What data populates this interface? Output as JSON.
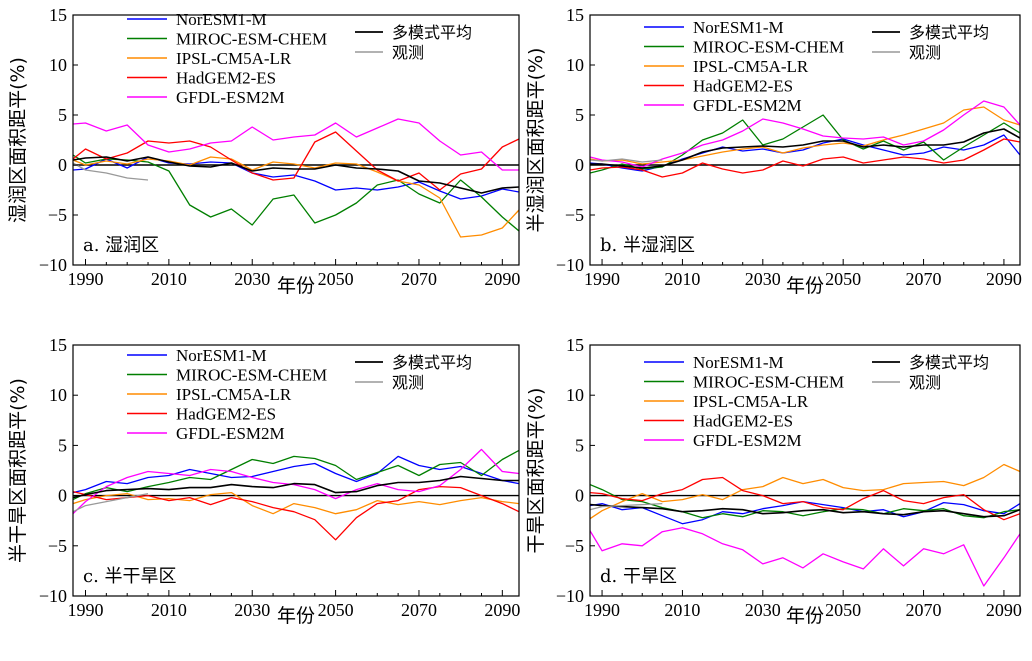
{
  "chart_data": [
    {
      "type": "line",
      "panel_label": "a. 湿润区",
      "xlabel": "年份",
      "ylabel": "湿润区面积距平(%)",
      "xlim": [
        1987,
        2094
      ],
      "ylim": [
        -10,
        15
      ],
      "xticks": [
        "1990",
        "2010",
        "2030",
        "2050",
        "2070",
        "2090"
      ],
      "yticks": [
        "15",
        "10",
        "5",
        "0",
        "−5",
        "−10"
      ],
      "x": [
        1987,
        1990,
        1995,
        2000,
        2005,
        2010,
        2015,
        2020,
        2025,
        2030,
        2035,
        2040,
        2045,
        2050,
        2055,
        2060,
        2065,
        2070,
        2075,
        2080,
        2085,
        2090,
        2094
      ],
      "series": [
        {
          "name": "NorESM1-M",
          "values": [
            -0.5,
            -0.4,
            0.6,
            -0.3,
            0.8,
            0.2,
            0.1,
            0.3,
            0.2,
            -0.8,
            -1.2,
            -1.0,
            -1.6,
            -2.5,
            -2.3,
            -2.5,
            -2.2,
            -1.7,
            -2.6,
            -3.4,
            -3.1,
            -2.4,
            -2.7
          ]
        },
        {
          "name": "MIROC-ESM-CHEM",
          "values": [
            1.0,
            0.2,
            0.6,
            0.5,
            0.3,
            -0.6,
            -4.0,
            -5.2,
            -4.4,
            -6.0,
            -3.4,
            -3.0,
            -5.8,
            -5.0,
            -3.8,
            -2.0,
            -1.5,
            -2.9,
            -3.8,
            -1.5,
            -3.2,
            -5.2,
            -6.6
          ]
        },
        {
          "name": "IPSL-CM5A-LR",
          "values": [
            0.5,
            0.0,
            0.4,
            0.1,
            0.6,
            0.4,
            0.0,
            0.8,
            0.6,
            -0.5,
            0.3,
            0.1,
            -0.3,
            0.2,
            0.1,
            -0.7,
            -1.6,
            -2.0,
            -3.3,
            -7.2,
            -7.0,
            -6.3,
            -4.5
          ]
        },
        {
          "name": "HadGEM2-ES",
          "values": [
            0.6,
            1.6,
            0.6,
            1.2,
            2.4,
            2.2,
            2.4,
            1.8,
            0.5,
            -0.8,
            -1.5,
            -1.3,
            2.3,
            3.3,
            1.4,
            -0.5,
            -1.6,
            -0.8,
            -2.5,
            -0.9,
            -0.4,
            1.8,
            2.6
          ]
        },
        {
          "name": "GFDL-ESM2M",
          "values": [
            4.1,
            4.2,
            3.4,
            4.0,
            2.0,
            1.3,
            1.6,
            2.2,
            2.4,
            3.8,
            2.5,
            2.8,
            3.0,
            4.2,
            2.8,
            3.7,
            4.6,
            4.2,
            2.4,
            1.0,
            1.3,
            -0.5,
            -0.5
          ]
        },
        {
          "name": "多模式平均",
          "values": [
            0.5,
            0.7,
            0.8,
            0.4,
            0.8,
            0.3,
            -0.1,
            -0.2,
            0.2,
            -0.6,
            -0.3,
            -0.4,
            -0.4,
            0.0,
            -0.3,
            -0.4,
            -0.6,
            -1.6,
            -1.8,
            -2.3,
            -2.8,
            -2.3,
            -2.2
          ]
        },
        {
          "name": "观测",
          "values": [
            0.2,
            -0.5,
            -0.8,
            -1.3,
            -1.5,
            null,
            null,
            null,
            null,
            null,
            null,
            null,
            null,
            null,
            null,
            null,
            null,
            null,
            null,
            null,
            null,
            null,
            null
          ]
        }
      ]
    },
    {
      "type": "line",
      "panel_label": "b. 半湿润区",
      "xlabel": "年份",
      "ylabel": "半湿润区面积距平(%)",
      "xlim": [
        1987,
        2094
      ],
      "ylim": [
        -10,
        15
      ],
      "xticks": [
        "1990",
        "2010",
        "2030",
        "2050",
        "2070",
        "2090"
      ],
      "yticks": [
        "15",
        "10",
        "5",
        "0",
        "−5",
        "−10"
      ],
      "x": [
        1987,
        1990,
        1995,
        2000,
        2005,
        2010,
        2015,
        2020,
        2025,
        2030,
        2035,
        2040,
        2045,
        2050,
        2055,
        2060,
        2065,
        2070,
        2075,
        2080,
        2085,
        2090,
        2094
      ],
      "series": [
        {
          "name": "NorESM1-M",
          "values": [
            0.2,
            0.1,
            -0.3,
            -0.6,
            -0.1,
            0.6,
            1.2,
            1.8,
            1.4,
            1.6,
            1.2,
            1.5,
            2.2,
            2.6,
            2.0,
            1.5,
            1.0,
            1.2,
            1.8,
            1.5,
            2.0,
            3.0,
            1.0
          ]
        },
        {
          "name": "MIROC-ESM-CHEM",
          "values": [
            -0.8,
            -0.5,
            0.1,
            -0.4,
            -0.2,
            1.0,
            2.5,
            3.2,
            4.5,
            2.0,
            2.6,
            3.8,
            5.0,
            2.5,
            1.6,
            2.4,
            1.5,
            2.3,
            0.5,
            1.8,
            3.0,
            4.2,
            3.2
          ]
        },
        {
          "name": "IPSL-CM5A-LR",
          "values": [
            0.6,
            0.4,
            0.5,
            0.1,
            0.3,
            0.5,
            0.9,
            1.3,
            1.6,
            1.8,
            1.2,
            1.7,
            2.0,
            2.2,
            1.9,
            2.5,
            3.0,
            3.6,
            4.2,
            5.5,
            5.8,
            4.5,
            4.0
          ]
        },
        {
          "name": "HadGEM2-ES",
          "values": [
            -0.5,
            -0.3,
            -0.2,
            -0.5,
            -1.2,
            -0.8,
            0.2,
            -0.4,
            -0.8,
            -0.5,
            0.4,
            -0.1,
            0.6,
            0.8,
            0.2,
            0.5,
            0.8,
            0.6,
            0.2,
            0.5,
            1.5,
            2.6,
            2.3
          ]
        },
        {
          "name": "GFDL-ESM2M",
          "values": [
            0.8,
            0.5,
            0.3,
            -0.2,
            0.6,
            1.2,
            2.0,
            2.5,
            3.4,
            4.6,
            4.2,
            3.6,
            2.9,
            2.7,
            2.6,
            2.8,
            2.0,
            2.4,
            3.5,
            5.0,
            6.4,
            5.8,
            4.0
          ]
        },
        {
          "name": "多模式平均",
          "values": [
            0.1,
            0.1,
            -0.1,
            -0.3,
            -0.1,
            0.5,
            1.3,
            1.7,
            1.8,
            1.9,
            1.8,
            2.0,
            2.4,
            2.4,
            1.8,
            2.0,
            1.8,
            2.0,
            2.0,
            2.3,
            3.2,
            3.6,
            2.7
          ]
        },
        {
          "name": "观测",
          "values": [
            0.5,
            0.4,
            0.6,
            0.3,
            0.5,
            null,
            null,
            null,
            null,
            null,
            null,
            null,
            null,
            null,
            null,
            null,
            null,
            null,
            null,
            null,
            null,
            null,
            null
          ]
        }
      ]
    },
    {
      "type": "line",
      "panel_label": "c. 半干旱区",
      "xlabel": "年份",
      "ylabel": "半干旱区面积距平(%)",
      "xlim": [
        1987,
        2094
      ],
      "ylim": [
        -10,
        15
      ],
      "xticks": [
        "1990",
        "2010",
        "2030",
        "2050",
        "2070",
        "2090"
      ],
      "yticks": [
        "15",
        "10",
        "5",
        "0",
        "−5",
        "−10"
      ],
      "x": [
        1987,
        1990,
        1995,
        2000,
        2005,
        2010,
        2015,
        2020,
        2025,
        2030,
        2035,
        2040,
        2045,
        2050,
        2055,
        2060,
        2065,
        2070,
        2075,
        2080,
        2085,
        2090,
        2094
      ],
      "series": [
        {
          "name": "NorESM1-M",
          "values": [
            0.3,
            0.6,
            1.4,
            1.2,
            1.8,
            2.0,
            2.6,
            2.2,
            1.8,
            1.9,
            2.4,
            2.9,
            3.2,
            2.2,
            1.4,
            2.2,
            3.9,
            3.0,
            2.6,
            2.9,
            2.2,
            1.5,
            1.2
          ]
        },
        {
          "name": "MIROC-ESM-CHEM",
          "values": [
            -0.4,
            0.2,
            0.8,
            0.4,
            0.9,
            1.3,
            1.8,
            1.6,
            2.6,
            3.6,
            3.2,
            3.9,
            3.7,
            3.0,
            1.6,
            2.3,
            3.0,
            2.0,
            3.1,
            3.3,
            2.0,
            3.6,
            4.5
          ]
        },
        {
          "name": "IPSL-CM5A-LR",
          "values": [
            -0.8,
            -0.4,
            0.0,
            0.2,
            -0.4,
            -0.3,
            -0.5,
            0.1,
            0.3,
            -1.0,
            -1.8,
            -0.8,
            -1.2,
            -1.8,
            -1.4,
            -0.5,
            -0.9,
            -0.6,
            -0.9,
            -0.5,
            -0.2,
            -0.6,
            -0.8
          ]
        },
        {
          "name": "HadGEM2-ES",
          "values": [
            0.4,
            0.1,
            -0.4,
            -0.2,
            0.0,
            -0.5,
            -0.2,
            -0.9,
            -0.2,
            -0.6,
            -1.2,
            -1.6,
            -2.4,
            -4.4,
            -2.2,
            -0.8,
            -0.5,
            0.6,
            0.9,
            0.8,
            0.0,
            -0.8,
            -1.6
          ]
        },
        {
          "name": "GFDL-ESM2M",
          "values": [
            -1.8,
            -0.6,
            0.9,
            1.8,
            2.4,
            2.2,
            2.0,
            2.6,
            2.4,
            1.8,
            1.3,
            1.1,
            0.6,
            -0.3,
            0.6,
            1.2,
            0.6,
            0.4,
            1.0,
            2.6,
            4.6,
            2.4,
            2.2
          ]
        },
        {
          "name": "多模式平均",
          "values": [
            -0.2,
            0.1,
            0.5,
            0.6,
            0.7,
            0.6,
            0.8,
            0.8,
            1.1,
            0.9,
            0.8,
            1.2,
            1.1,
            0.3,
            0.4,
            1.0,
            1.3,
            1.3,
            1.5,
            1.9,
            1.7,
            1.5,
            1.5
          ]
        },
        {
          "name": "观测",
          "values": [
            -1.6,
            -1.0,
            -0.6,
            -0.2,
            0.2,
            null,
            null,
            null,
            null,
            null,
            null,
            null,
            null,
            null,
            null,
            null,
            null,
            null,
            null,
            null,
            null,
            null,
            null
          ]
        }
      ]
    },
    {
      "type": "line",
      "panel_label": "d. 干旱区",
      "xlabel": "年份",
      "ylabel": "干旱区面积距平(%)",
      "xlim": [
        1987,
        2094
      ],
      "ylim": [
        -10,
        15
      ],
      "xticks": [
        "1990",
        "2010",
        "2030",
        "2050",
        "2070",
        "2090"
      ],
      "yticks": [
        "15",
        "10",
        "5",
        "0",
        "−5",
        "−10"
      ],
      "x": [
        1987,
        1990,
        1995,
        2000,
        2005,
        2010,
        2015,
        2020,
        2025,
        2030,
        2035,
        2040,
        2045,
        2050,
        2055,
        2060,
        2065,
        2070,
        2075,
        2080,
        2085,
        2090,
        2094
      ],
      "series": [
        {
          "name": "NorESM1-M",
          "values": [
            -1.0,
            -0.8,
            -1.4,
            -1.2,
            -2.0,
            -2.8,
            -2.4,
            -1.6,
            -1.8,
            -1.3,
            -1.0,
            -0.6,
            -0.9,
            -1.2,
            -1.6,
            -1.4,
            -2.1,
            -1.6,
            -0.7,
            -0.9,
            -1.5,
            -1.8,
            -0.8
          ]
        },
        {
          "name": "MIROC-ESM-CHEM",
          "values": [
            1.1,
            0.6,
            -0.4,
            -0.6,
            -1.2,
            -1.6,
            -2.2,
            -1.8,
            -2.1,
            -1.5,
            -1.6,
            -2.0,
            -1.6,
            -1.3,
            -1.4,
            -1.8,
            -1.3,
            -1.5,
            -1.3,
            -2.0,
            -2.2,
            -1.6,
            -1.4
          ]
        },
        {
          "name": "IPSL-CM5A-LR",
          "values": [
            -2.3,
            -1.5,
            -0.6,
            0.2,
            -0.6,
            -0.4,
            0.1,
            -0.4,
            0.6,
            0.9,
            1.8,
            1.2,
            1.6,
            0.8,
            0.5,
            0.6,
            1.2,
            1.3,
            1.4,
            1.0,
            1.8,
            3.1,
            2.4
          ]
        },
        {
          "name": "HadGEM2-ES",
          "values": [
            0.3,
            0.2,
            -0.3,
            -0.5,
            0.2,
            0.6,
            1.6,
            1.8,
            0.5,
            0.0,
            -0.8,
            -0.6,
            -1.2,
            -1.4,
            -0.3,
            0.5,
            -0.5,
            -0.8,
            -0.2,
            0.1,
            -1.4,
            -2.4,
            -1.8
          ]
        },
        {
          "name": "GFDL-ESM2M",
          "values": [
            -3.5,
            -5.5,
            -4.8,
            -5.0,
            -3.6,
            -3.2,
            -3.8,
            -4.8,
            -5.4,
            -6.8,
            -6.2,
            -7.2,
            -5.8,
            -6.6,
            -7.3,
            -5.3,
            -7.0,
            -5.3,
            -5.8,
            -4.9,
            -9.0,
            -6.2,
            -3.8
          ]
        },
        {
          "name": "多模式平均",
          "values": [
            -0.9,
            -1.0,
            -1.1,
            -1.2,
            -1.3,
            -1.6,
            -1.5,
            -1.3,
            -1.4,
            -1.8,
            -1.7,
            -1.5,
            -1.4,
            -1.7,
            -1.6,
            -1.8,
            -1.9,
            -1.6,
            -1.5,
            -1.8,
            -2.1,
            -2.0,
            -1.4
          ]
        },
        {
          "name": "观测",
          "values": [
            -1.4,
            -1.1,
            -1.0,
            -0.9,
            -0.8,
            null,
            null,
            null,
            null,
            null,
            null,
            null,
            null,
            null,
            null,
            null,
            null,
            null,
            null,
            null,
            null,
            null,
            null
          ]
        }
      ]
    }
  ],
  "colors": {
    "NorESM1-M": "#0000ff",
    "MIROC-ESM-CHEM": "#007f00",
    "IPSL-CM5A-LR": "#ff8c00",
    "HadGEM2-ES": "#ff0000",
    "GFDL-ESM2M": "#ff00ff",
    "多模式平均": "#000000",
    "观测": "#999999"
  }
}
